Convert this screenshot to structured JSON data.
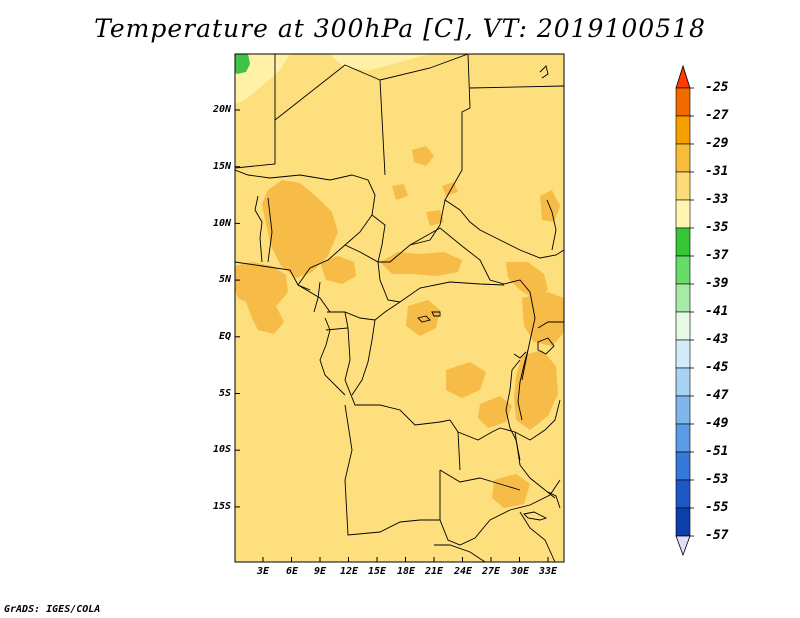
{
  "title": "Temperature at 300hPa [C], VT: 2019100518",
  "credit": "GrADS: IGES/COLA",
  "lat_labels": [
    "20N",
    "15N",
    "10N",
    "5N",
    "EQ",
    "5S",
    "10S",
    "15S"
  ],
  "lon_labels": [
    "3E",
    "6E",
    "9E",
    "12E",
    "15E",
    "18E",
    "21E",
    "24E",
    "27E",
    "30E",
    "33E"
  ],
  "colorbar": {
    "labels": [
      "-25",
      "-27",
      "-29",
      "-31",
      "-33",
      "-35",
      "-37",
      "-39",
      "-41",
      "-43",
      "-45",
      "-47",
      "-49",
      "-51",
      "-53",
      "-55",
      "-57"
    ],
    "colors": [
      "#ff3a00",
      "#f06a00",
      "#f5a000",
      "#f7bc3a",
      "#fddc78",
      "#fff5b0",
      "#36c636",
      "#66dd66",
      "#a5eaa5",
      "#e6fae6",
      "#d4ecfa",
      "#a9d3f3",
      "#7fb7ec",
      "#5a9ae6",
      "#3779d9",
      "#1c59c7",
      "#0b3fab",
      "#061a6e"
    ]
  },
  "fill_colors": {
    "base": "#fddf7e",
    "warm": "#f7bb47",
    "cool": "#fff2a8",
    "green": "#42c242"
  }
}
